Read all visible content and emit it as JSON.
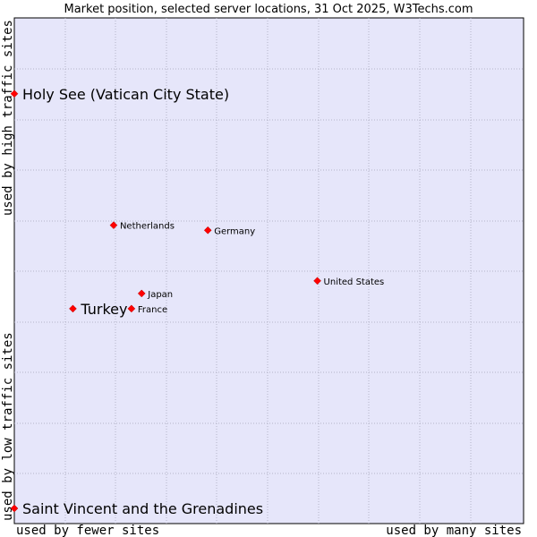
{
  "chart_data": {
    "type": "scatter",
    "title": "Market position, selected server locations, 31 Oct 2025, W3Techs.com",
    "xlabel_left": "used by fewer sites",
    "xlabel_right": "used by many sites",
    "ylabel_bottom": "used by low traffic sites",
    "ylabel_top": "used by high traffic sites",
    "xlim": [
      0,
      10
    ],
    "ylim": [
      0,
      10
    ],
    "grid": true,
    "points": [
      {
        "name": "Holy See (Vatican City State)",
        "x": 0.0,
        "y": 8.5,
        "emphasis": true
      },
      {
        "name": "Netherlands",
        "x": 1.95,
        "y": 5.9,
        "emphasis": false
      },
      {
        "name": "Germany",
        "x": 3.8,
        "y": 5.8,
        "emphasis": false
      },
      {
        "name": "United States",
        "x": 5.95,
        "y": 4.8,
        "emphasis": false
      },
      {
        "name": "Japan",
        "x": 2.5,
        "y": 4.55,
        "emphasis": false
      },
      {
        "name": "Turkey",
        "x": 1.15,
        "y": 4.25,
        "emphasis": true
      },
      {
        "name": "France",
        "x": 2.3,
        "y": 4.25,
        "emphasis": false
      },
      {
        "name": "Saint Vincent and the Grenadines",
        "x": 0.0,
        "y": 0.3,
        "emphasis": true
      }
    ]
  },
  "colors": {
    "plot_bg": "#e6e6fa",
    "grid": "#b4b4c8",
    "marker": "#ff0000",
    "marker_edge": "#b40000"
  }
}
